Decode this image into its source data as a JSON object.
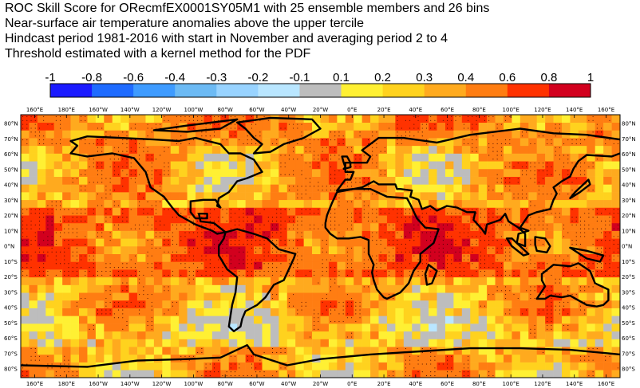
{
  "title": {
    "line1": "ROC Skill Score for ORecmfEX0001SY05M1 with 25 ensemble members and 26 bins",
    "line2": "Near-surface air temperature anomalies above the upper tercile",
    "line3": "Hindcast period 1981-2016 with start in November and averaging period  2 to  4",
    "line4": "Threshold estimated with a kernel method for the PDF"
  },
  "colorbar": {
    "labels": [
      "-1",
      "-0.8",
      "-0.6",
      "-0.4",
      "-0.3",
      "-0.2",
      "-0.1",
      "0.1",
      "0.2",
      "0.3",
      "0.4",
      "0.6",
      "0.8",
      "1"
    ],
    "colors": [
      "#1a1aff",
      "#1e6bff",
      "#3e9bff",
      "#6cbaf4",
      "#98d3ff",
      "#b9e6ff",
      "#bdbdbd",
      "#fff033",
      "#ffd21e",
      "#ffaa1e",
      "#ff7d12",
      "#ff3200",
      "#d2001e",
      "#7a0a28"
    ]
  },
  "map": {
    "lon_labels": [
      "160°E",
      "180°E",
      "160°W",
      "140°W",
      "120°W",
      "100°W",
      "80°W",
      "60°W",
      "40°W",
      "20°W",
      "0°E",
      "20°E",
      "40°E",
      "60°E",
      "80°E",
      "100°E",
      "120°E",
      "140°E",
      "160°E"
    ],
    "lat_labels": [
      "80°N",
      "70°N",
      "60°N",
      "50°N",
      "40°N",
      "30°N",
      "20°N",
      "10°N",
      "0°N",
      "10°S",
      "20°S",
      "30°S",
      "40°S",
      "50°S",
      "60°S",
      "70°S",
      "80°S"
    ],
    "lon_range": [
      160,
      520
    ],
    "lat_range": [
      -85,
      85
    ],
    "projection": "cylindrical-equidistant",
    "significance_dots": true,
    "coastline_color": "#000000"
  }
}
